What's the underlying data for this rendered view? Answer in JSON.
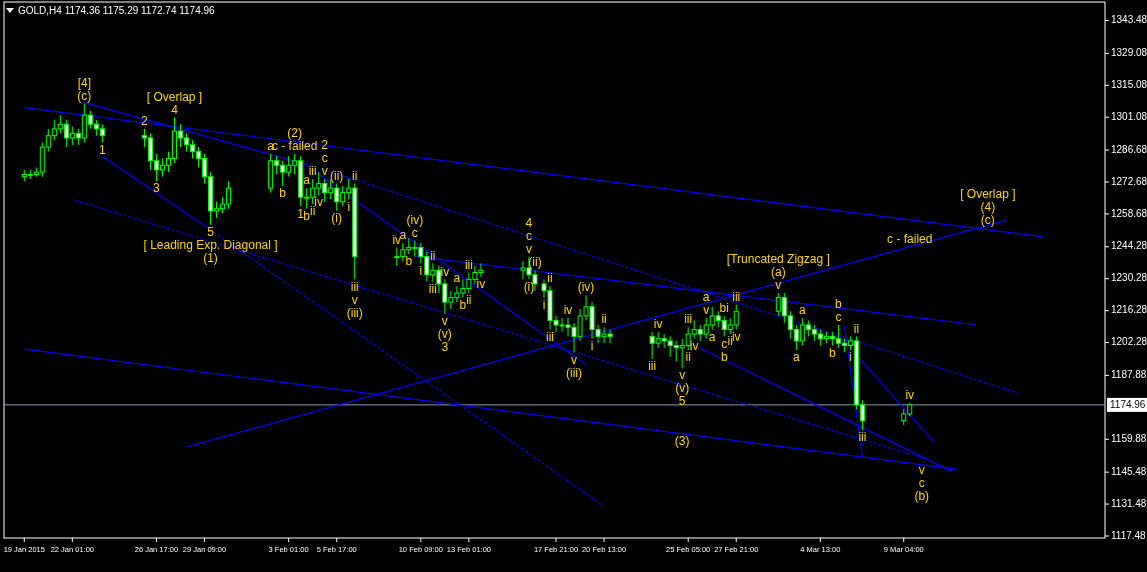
{
  "chart_data": {
    "type": "candlestick",
    "title": "GOLD,H4  1174.36 1175.29 1172.74 1174.96",
    "xlim": [
      "2015-01-18T06:00",
      "2015-03-20T08:00"
    ],
    "xticks": [
      {
        "value": "2015-01-19T09:00",
        "label": "19 Jan 2015"
      },
      {
        "value": "2015-01-22T01:00",
        "label": "22 Jan 01:00"
      },
      {
        "value": "2015-01-26T17:00",
        "label": "26 Jan 17:00"
      },
      {
        "value": "2015-01-29T09:00",
        "label": "29 Jan 09:00"
      },
      {
        "value": "2015-02-03T01:00",
        "label": "3 Feb 01:00"
      },
      {
        "value": "2015-02-05T17:00",
        "label": "5 Feb 17:00"
      },
      {
        "value": "2015-02-10T09:00",
        "label": "10 Feb 09:00"
      },
      {
        "value": "2015-02-13T01:00",
        "label": "13 Feb 01:00"
      },
      {
        "value": "2015-02-17T21:00",
        "label": "17 Feb 21:00"
      },
      {
        "value": "2015-02-20T13:00",
        "label": "20 Feb 13:00"
      },
      {
        "value": "2015-02-25T05:00",
        "label": "25 Feb 05:00"
      },
      {
        "value": "2015-02-27T21:00",
        "label": "27 Feb 21:00"
      },
      {
        "value": "2015-03-04T13:00",
        "label": "4 Mar 13:00"
      },
      {
        "value": "2015-03-09T04:00",
        "label": "9 Mar 04:00"
      }
    ],
    "ylim": [
      1116.6,
      1351.6
    ],
    "yticks": [
      1117.48,
      1131.48,
      1145.48,
      1159.88,
      1187.88,
      1202.28,
      1216.28,
      1230.28,
      1244.28,
      1258.68,
      1272.68,
      1286.68,
      1301.08,
      1315.08,
      1329.08,
      1343.48
    ],
    "ref_lines": [
      {
        "axis": "y",
        "value": 1174.96,
        "label": "1174.96",
        "color": "#8a9bb0"
      }
    ],
    "color": "#00ff00",
    "x": [
      "2015-01-19T09:00",
      "2015-01-19T17:00",
      "2015-01-20T01:00",
      "2015-01-20T09:00",
      "2015-01-20T17:00",
      "2015-01-21T01:00",
      "2015-01-21T09:00",
      "2015-01-21T17:00",
      "2015-01-22T01:00",
      "2015-01-22T09:00",
      "2015-01-22T17:00",
      "2015-01-23T01:00",
      "2015-01-23T09:00",
      "2015-01-23T17:00",
      "2015-01-26T01:00",
      "2015-01-26T09:00",
      "2015-01-26T17:00",
      "2015-01-27T01:00",
      "2015-01-27T09:00",
      "2015-01-27T17:00",
      "2015-01-28T01:00",
      "2015-01-28T09:00",
      "2015-01-28T17:00",
      "2015-01-29T01:00",
      "2015-01-29T09:00",
      "2015-01-29T17:00",
      "2015-01-30T01:00",
      "2015-01-30T09:00",
      "2015-01-30T17:00",
      "2015-02-02T01:00",
      "2015-02-02T09:00",
      "2015-02-02T17:00",
      "2015-02-03T01:00",
      "2015-02-03T09:00",
      "2015-02-03T17:00",
      "2015-02-04T01:00",
      "2015-02-04T09:00",
      "2015-02-04T17:00",
      "2015-02-05T01:00",
      "2015-02-05T09:00",
      "2015-02-05T17:00",
      "2015-02-06T01:00",
      "2015-02-06T09:00",
      "2015-02-06T17:00",
      "2015-02-09T01:00",
      "2015-02-09T09:00",
      "2015-02-09T17:00",
      "2015-02-10T01:00",
      "2015-02-10T09:00",
      "2015-02-10T17:00",
      "2015-02-11T01:00",
      "2015-02-11T09:00",
      "2015-02-11T17:00",
      "2015-02-12T01:00",
      "2015-02-12T09:00",
      "2015-02-12T17:00",
      "2015-02-13T01:00",
      "2015-02-13T09:00",
      "2015-02-13T17:00",
      "2015-02-16T01:00",
      "2015-02-16T09:00",
      "2015-02-16T17:00",
      "2015-02-17T05:00",
      "2015-02-17T13:00",
      "2015-02-17T21:00",
      "2015-02-18T05:00",
      "2015-02-18T13:00",
      "2015-02-18T21:00",
      "2015-02-19T05:00",
      "2015-02-19T13:00",
      "2015-02-19T21:00",
      "2015-02-20T05:00",
      "2015-02-20T13:00",
      "2015-02-20T21:00",
      "2015-02-23T05:00",
      "2015-02-23T13:00",
      "2015-02-23T21:00",
      "2015-02-24T05:00",
      "2015-02-24T13:00",
      "2015-02-24T21:00",
      "2015-02-25T05:00",
      "2015-02-25T13:00",
      "2015-02-25T21:00",
      "2015-02-26T05:00",
      "2015-02-26T13:00",
      "2015-02-26T21:00",
      "2015-02-27T05:00",
      "2015-02-27T13:00",
      "2015-02-27T21:00",
      "2015-03-02T05:00",
      "2015-03-02T13:00",
      "2015-03-02T21:00",
      "2015-03-03T05:00",
      "2015-03-03T13:00",
      "2015-03-03T21:00",
      "2015-03-04T05:00",
      "2015-03-04T13:00",
      "2015-03-04T21:00",
      "2015-03-05T05:00",
      "2015-03-05T13:00",
      "2015-03-05T21:00",
      "2015-03-06T05:00",
      "2015-03-06T13:00",
      "2015-03-06T21:00",
      "2015-03-09T04:00",
      "2015-03-09T12:00"
    ],
    "ohlc": [
      [
        1275,
        1278,
        1273,
        1276
      ],
      [
        1276,
        1278,
        1274,
        1276
      ],
      [
        1276,
        1279,
        1275,
        1277
      ],
      [
        1277,
        1290,
        1275,
        1288
      ],
      [
        1288,
        1296,
        1286,
        1293
      ],
      [
        1293,
        1300,
        1291,
        1296
      ],
      [
        1296,
        1302,
        1294,
        1298
      ],
      [
        1298,
        1300,
        1288,
        1292
      ],
      [
        1292,
        1297,
        1289,
        1294
      ],
      [
        1294,
        1296,
        1289,
        1292
      ],
      [
        1292,
        1307,
        1290,
        1302
      ],
      [
        1302,
        1304,
        1296,
        1298
      ],
      [
        1298,
        1300,
        1293,
        1296
      ],
      [
        1296,
        1298,
        1290,
        1293
      ],
      [
        1293,
        1296,
        1288,
        1292
      ],
      [
        1292,
        1294,
        1278,
        1282
      ],
      [
        1282,
        1285,
        1273,
        1278
      ],
      [
        1278,
        1283,
        1275,
        1280
      ],
      [
        1280,
        1286,
        1277,
        1283
      ],
      [
        1283,
        1301,
        1281,
        1295
      ],
      [
        1295,
        1298,
        1288,
        1292
      ],
      [
        1292,
        1294,
        1286,
        1289
      ],
      [
        1289,
        1291,
        1283,
        1286
      ],
      [
        1286,
        1288,
        1279,
        1283
      ],
      [
        1283,
        1285,
        1272,
        1275
      ],
      [
        1275,
        1277,
        1254,
        1260
      ],
      [
        1260,
        1264,
        1257,
        1261
      ],
      [
        1261,
        1266,
        1259,
        1263
      ],
      [
        1263,
        1273,
        1261,
        1270
      ],
      [
        1270,
        1285,
        1268,
        1282
      ],
      [
        1282,
        1284,
        1276,
        1280
      ],
      [
        1280,
        1282,
        1271,
        1277
      ],
      [
        1277,
        1284,
        1275,
        1280
      ],
      [
        1280,
        1285,
        1276,
        1282
      ],
      [
        1282,
        1284,
        1262,
        1266
      ],
      [
        1266,
        1270,
        1261,
        1266
      ],
      [
        1266,
        1274,
        1263,
        1270
      ],
      [
        1270,
        1277,
        1267,
        1272
      ],
      [
        1272,
        1274,
        1264,
        1268
      ],
      [
        1268,
        1274,
        1265,
        1270
      ],
      [
        1270,
        1272,
        1260,
        1264
      ],
      [
        1264,
        1271,
        1262,
        1268
      ],
      [
        1268,
        1274,
        1265,
        1270
      ],
      [
        1270,
        1272,
        1230,
        1240
      ],
      [
        1240,
        1244,
        1236,
        1240
      ],
      [
        1240,
        1246,
        1238,
        1243
      ],
      [
        1243,
        1248,
        1241,
        1244
      ],
      [
        1244,
        1247,
        1240,
        1244
      ],
      [
        1244,
        1246,
        1237,
        1240
      ],
      [
        1240,
        1242,
        1229,
        1232
      ],
      [
        1232,
        1237,
        1229,
        1234
      ],
      [
        1234,
        1236,
        1224,
        1228
      ],
      [
        1228,
        1230,
        1215,
        1220
      ],
      [
        1220,
        1225,
        1217,
        1222
      ],
      [
        1222,
        1227,
        1220,
        1224
      ],
      [
        1224,
        1230,
        1222,
        1226
      ],
      [
        1226,
        1233,
        1224,
        1230
      ],
      [
        1230,
        1236,
        1228,
        1233
      ],
      [
        1233,
        1237,
        1231,
        1234
      ],
      [
        1234,
        1238,
        1230,
        1235
      ],
      [
        1235,
        1240,
        1230,
        1232
      ],
      [
        1232,
        1234,
        1225,
        1228
      ],
      [
        1228,
        1230,
        1222,
        1225
      ],
      [
        1225,
        1227,
        1208,
        1212
      ],
      [
        1212,
        1214,
        1207,
        1210
      ],
      [
        1210,
        1213,
        1207,
        1210
      ],
      [
        1210,
        1213,
        1205,
        1209
      ],
      [
        1209,
        1211,
        1198,
        1205
      ],
      [
        1205,
        1217,
        1203,
        1214
      ],
      [
        1214,
        1223,
        1212,
        1218
      ],
      [
        1218,
        1220,
        1204,
        1208
      ],
      [
        1208,
        1210,
        1202,
        1205
      ],
      [
        1205,
        1209,
        1202,
        1206
      ],
      [
        1206,
        1208,
        1202,
        1205
      ],
      [
        1205,
        1207,
        1195,
        1202
      ],
      [
        1202,
        1207,
        1200,
        1204
      ],
      [
        1204,
        1206,
        1200,
        1203
      ],
      [
        1203,
        1205,
        1196,
        1201
      ],
      [
        1201,
        1203,
        1194,
        1200
      ],
      [
        1200,
        1204,
        1191,
        1201
      ],
      [
        1201,
        1209,
        1199,
        1206
      ],
      [
        1206,
        1212,
        1204,
        1208
      ],
      [
        1208,
        1210,
        1203,
        1206
      ],
      [
        1206,
        1213,
        1204,
        1210
      ],
      [
        1210,
        1218,
        1208,
        1214
      ],
      [
        1214,
        1216,
        1209,
        1212
      ],
      [
        1212,
        1214,
        1205,
        1208
      ],
      [
        1208,
        1213,
        1206,
        1210
      ],
      [
        1210,
        1219,
        1208,
        1216
      ],
      [
        1216,
        1224,
        1214,
        1222
      ],
      [
        1222,
        1224,
        1211,
        1214
      ],
      [
        1214,
        1216,
        1204,
        1208
      ],
      [
        1208,
        1210,
        1199,
        1203
      ],
      [
        1203,
        1213,
        1201,
        1210
      ],
      [
        1210,
        1212,
        1205,
        1208
      ],
      [
        1208,
        1210,
        1203,
        1206
      ],
      [
        1206,
        1208,
        1201,
        1204
      ],
      [
        1204,
        1207,
        1202,
        1205
      ],
      [
        1205,
        1207,
        1201,
        1204
      ],
      [
        1204,
        1210,
        1200,
        1202
      ],
      [
        1202,
        1204,
        1198,
        1201
      ],
      [
        1201,
        1205,
        1199,
        1203
      ],
      [
        1203,
        1205,
        1173,
        1175
      ],
      [
        1175,
        1177,
        1164,
        1168
      ],
      [
        1168,
        1173,
        1166,
        1171
      ],
      [
        1171,
        1176,
        1170,
        1175
      ]
    ],
    "series": [
      {
        "type": "line",
        "color": "#0000ff",
        "line_style": "solid",
        "x": [
          "2015-01-19T09:00",
          "2015-03-16T20:00"
        ],
        "values": [
          1305.3,
          1248.7
        ]
      },
      {
        "type": "line",
        "color": "#0000ff",
        "line_style": "solid",
        "x": [
          "2015-01-22T17:00",
          "2015-02-04T01:00"
        ],
        "values": [
          1307.5,
          1280.4
        ]
      },
      {
        "type": "line",
        "color": "#0000ff",
        "line_style": "dashed",
        "x": [
          "2015-02-04T01:00",
          "2015-03-15T12:00"
        ],
        "values": [
          1280.4,
          1180.1
        ]
      },
      {
        "type": "line",
        "color": "#0000ff",
        "line_style": "solid",
        "x": [
          "2015-01-23T17:00",
          "2015-01-29T17:00"
        ],
        "values": [
          1283.9,
          1251.7
        ]
      },
      {
        "type": "line",
        "color": "#0000ff",
        "line_style": "dashed",
        "x": [
          "2015-01-29T17:00",
          "2015-02-20T13:00"
        ],
        "values": [
          1251.7,
          1130.4
        ]
      },
      {
        "type": "line",
        "color": "#0000ff",
        "line_style": "dashed",
        "x": [
          "2015-01-22T01:00",
          "2015-03-10T12:00"
        ],
        "values": [
          1265.0,
          1151.0
        ]
      },
      {
        "type": "line",
        "color": "#0000ff",
        "line_style": "solid",
        "x": [
          "2015-01-19T09:00",
          "2015-03-12T04:00"
        ],
        "values": [
          1199.4,
          1146.7
        ]
      },
      {
        "type": "line",
        "color": "#0000ff",
        "line_style": "solid",
        "x": [
          "2015-01-28T09:00",
          "2015-03-14T20:00"
        ],
        "values": [
          1156.5,
          1256.0
        ]
      },
      {
        "type": "line",
        "color": "#0000ff",
        "line_style": "solid",
        "x": [
          "2015-02-10T01:00",
          "2015-03-13T04:00"
        ],
        "values": [
          1240.1,
          1210.1
        ]
      },
      {
        "type": "line",
        "color": "#0000ff",
        "line_style": "solid",
        "x": [
          "2015-02-03T17:00",
          "2015-02-19T13:00"
        ],
        "values": [
          1281.7,
          1192.5
        ]
      },
      {
        "type": "line",
        "color": "#0000ff",
        "line_style": "solid",
        "x": [
          "2015-02-25T13:00",
          "2015-03-11T20:00"
        ],
        "values": [
          1201.1,
          1145.8
        ]
      },
      {
        "type": "line",
        "color": "#0000ff",
        "line_style": "solid",
        "x": [
          "2015-03-05T21:00",
          "2015-03-06T21:00"
        ],
        "values": [
          1209.7,
          1152.2
        ]
      },
      {
        "type": "line",
        "color": "#0000ff",
        "line_style": "solid",
        "x": [
          "2015-03-06T13:00",
          "2015-03-10T20:00"
        ],
        "values": [
          1196.8,
          1158.6
        ]
      }
    ],
    "annotations": [
      {
        "text": "[4]",
        "x": "2015-01-22T17:00",
        "y": 1307
      },
      {
        "text": "(c)",
        "x": "2015-01-22T17:00",
        "y": 1307
      },
      {
        "text": "[ Overlap ]",
        "x": "2015-01-27T17:00",
        "y": 1301
      },
      {
        "text": "4",
        "x": "2015-01-27T17:00",
        "y": 1301
      },
      {
        "text": "2",
        "x": "2015-01-26T01:00",
        "y": 1296
      },
      {
        "text": "1",
        "x": "2015-01-23T17:00",
        "y": 1290
      },
      {
        "text": "3",
        "x": "2015-01-26T17:00",
        "y": 1273
      },
      {
        "text": "5",
        "x": "2015-01-29T17:00",
        "y": 1254
      },
      {
        "text": "[ Leading Exp. Diagonal ]",
        "x": "2015-01-29T17:00",
        "y": 1254
      },
      {
        "text": "(1)",
        "x": "2015-01-29T17:00",
        "y": 1254
      },
      {
        "text": "a",
        "x": "2015-02-02T01:00",
        "y": 1285
      },
      {
        "text": "b",
        "x": "2015-02-02T17:00",
        "y": 1271
      },
      {
        "text": "(2)",
        "x": "2015-02-03T09:00",
        "y": 1285
      },
      {
        "text": "c - failed",
        "x": "2015-02-03T09:00",
        "y": 1285
      },
      {
        "text": "1",
        "x": "2015-02-03T17:00",
        "y": 1262
      },
      {
        "text": "2",
        "x": "2015-02-05T01:00",
        "y": 1274
      },
      {
        "text": "c",
        "x": "2015-02-05T01:00",
        "y": 1274
      },
      {
        "text": "v",
        "x": "2015-02-05T01:00",
        "y": 1274
      },
      {
        "text": "iii",
        "x": "2015-02-04T09:00",
        "y": 1274
      },
      {
        "text": "a",
        "x": "2015-02-04T01:00",
        "y": 1270
      },
      {
        "text": "b",
        "x": "2015-02-04T01:00",
        "y": 1261
      },
      {
        "text": "ii",
        "x": "2015-02-04T09:00",
        "y": 1263
      },
      {
        "text": "iv",
        "x": "2015-02-04T17:00",
        "y": 1267
      },
      {
        "text": "(ii)",
        "x": "2015-02-05T17:00",
        "y": 1272
      },
      {
        "text": "i",
        "x": "2015-02-06T09:00",
        "y": 1265
      },
      {
        "text": "ii",
        "x": "2015-02-06T17:00",
        "y": 1272
      },
      {
        "text": "iii",
        "x": "2015-02-06T17:00",
        "y": 1230
      },
      {
        "text": "v",
        "x": "2015-02-06T17:00",
        "y": 1230
      },
      {
        "text": "(iii)",
        "x": "2015-02-06T17:00",
        "y": 1230
      },
      {
        "text": "(i)",
        "x": "2015-02-05T17:00",
        "y": 1260
      },
      {
        "text": "iv",
        "x": "2015-02-09T01:00",
        "y": 1244
      },
      {
        "text": "a",
        "x": "2015-02-09T09:00",
        "y": 1246
      },
      {
        "text": "b",
        "x": "2015-02-09T17:00",
        "y": 1241
      },
      {
        "text": "(iv)",
        "x": "2015-02-10T01:00",
        "y": 1247
      },
      {
        "text": "c",
        "x": "2015-02-10T01:00",
        "y": 1247
      },
      {
        "text": "ii",
        "x": "2015-02-11T01:00",
        "y": 1237
      },
      {
        "text": "iii",
        "x": "2015-02-11T01:00",
        "y": 1229
      },
      {
        "text": "a",
        "x": "2015-02-12T09:00",
        "y": 1227
      },
      {
        "text": "i",
        "x": "2015-02-10T09:00",
        "y": 1237
      },
      {
        "text": "iv",
        "x": "2015-02-11T17:00",
        "y": 1230
      },
      {
        "text": "v",
        "x": "2015-02-11T17:00",
        "y": 1215
      },
      {
        "text": "(v)",
        "x": "2015-02-11T17:00",
        "y": 1215
      },
      {
        "text": "3",
        "x": "2015-02-11T17:00",
        "y": 1215
      },
      {
        "text": "b",
        "x": "2015-02-12T17:00",
        "y": 1222
      },
      {
        "text": "iii",
        "x": "2015-02-13T01:00",
        "y": 1233
      },
      {
        "text": "ii",
        "x": "2015-02-13T01:00",
        "y": 1224
      },
      {
        "text": "iv",
        "x": "2015-02-13T17:00",
        "y": 1231
      },
      {
        "text": "4",
        "x": "2015-02-16T09:00",
        "y": 1240
      },
      {
        "text": "c",
        "x": "2015-02-16T09:00",
        "y": 1240
      },
      {
        "text": "v",
        "x": "2015-02-16T09:00",
        "y": 1240
      },
      {
        "text": "(i)",
        "x": "2015-02-16T09:00",
        "y": 1230
      },
      {
        "text": "(ii)",
        "x": "2015-02-16T17:00",
        "y": 1234
      },
      {
        "text": "i",
        "x": "2015-02-17T05:00",
        "y": 1222
      },
      {
        "text": "ii",
        "x": "2015-02-17T13:00",
        "y": 1227
      },
      {
        "text": "iii",
        "x": "2015-02-17T13:00",
        "y": 1208
      },
      {
        "text": "(iv)",
        "x": "2015-02-19T13:00",
        "y": 1223
      },
      {
        "text": "iv",
        "x": "2015-02-18T13:00",
        "y": 1213
      },
      {
        "text": "ii",
        "x": "2015-02-20T13:00",
        "y": 1209
      },
      {
        "text": "v",
        "x": "2015-02-18T21:00",
        "y": 1198
      },
      {
        "text": "(iii)",
        "x": "2015-02-18T21:00",
        "y": 1198
      },
      {
        "text": "i",
        "x": "2015-02-19T21:00",
        "y": 1204
      },
      {
        "text": "iv",
        "x": "2015-02-23T13:00",
        "y": 1207
      },
      {
        "text": "iii",
        "x": "2015-02-23T05:00",
        "y": 1195
      },
      {
        "text": "iii",
        "x": "2015-02-25T05:00",
        "y": 1209
      },
      {
        "text": "ii",
        "x": "2015-02-25T05:00",
        "y": 1199
      },
      {
        "text": "iv",
        "x": "2015-02-25T13:00",
        "y": 1204
      },
      {
        "text": "v",
        "x": "2015-02-24T21:00",
        "y": 1191
      },
      {
        "text": "(v)",
        "x": "2015-02-24T21:00",
        "y": 1191
      },
      {
        "text": "5",
        "x": "2015-02-24T21:00",
        "y": 1191
      },
      {
        "text": "(3)",
        "x": "2015-02-24T21:00",
        "y": 1162.3
      },
      {
        "text": "a",
        "x": "2015-02-26T05:00",
        "y": 1213
      },
      {
        "text": "v",
        "x": "2015-02-26T05:00",
        "y": 1213
      },
      {
        "text": "bi",
        "x": "2015-02-27T05:00",
        "y": 1214
      },
      {
        "text": "c",
        "x": "2015-02-27T05:00",
        "y": 1205
      },
      {
        "text": "b",
        "x": "2015-02-27T05:00",
        "y": 1205
      },
      {
        "text": "a",
        "x": "2015-02-26T13:00",
        "y": 1208
      },
      {
        "text": "[Truncated Zigzag ]",
        "x": "2015-03-02T05:00",
        "y": 1224
      },
      {
        "text": "(a)",
        "x": "2015-03-02T05:00",
        "y": 1224
      },
      {
        "text": "c - failed",
        "x": "2015-03-09T12:00",
        "y": 1244.3
      },
      {
        "text": "v",
        "x": "2015-03-02T05:00",
        "y": 1224
      },
      {
        "text": "iii",
        "x": "2015-02-27T21:00",
        "y": 1219
      },
      {
        "text": "iv",
        "x": "2015-02-27T21:00",
        "y": 1208
      },
      {
        "text": "ii",
        "x": "2015-02-27T13:00",
        "y": 1206
      },
      {
        "text": "a",
        "x": "2015-03-03T13:00",
        "y": 1213
      },
      {
        "text": "a",
        "x": "2015-03-03T05:00",
        "y": 1199
      },
      {
        "text": "b",
        "x": "2015-03-05T13:00",
        "y": 1210
      },
      {
        "text": "c",
        "x": "2015-03-05T13:00",
        "y": 1210
      },
      {
        "text": "b",
        "x": "2015-03-05T05:00",
        "y": 1201
      },
      {
        "text": "ii",
        "x": "2015-03-06T13:00",
        "y": 1205
      },
      {
        "text": "i",
        "x": "2015-03-06T05:00",
        "y": 1199
      },
      {
        "text": "iii",
        "x": "2015-03-06T21:00",
        "y": 1164
      },
      {
        "text": "iv",
        "x": "2015-03-09T12:00",
        "y": 1176
      },
      {
        "text": "v",
        "x": "2015-03-10T04:00",
        "y": 1149.5
      },
      {
        "text": "c",
        "x": "2015-03-10T04:00",
        "y": 1149.5
      },
      {
        "text": "(b)",
        "x": "2015-03-10T04:00",
        "y": 1149.5
      },
      {
        "text": "[ Overlap ]",
        "x": "2015-03-13T20:00",
        "y": 1252.8
      },
      {
        "text": "(4)",
        "x": "2015-03-13T20:00",
        "y": 1252.8
      },
      {
        "text": "(c)",
        "x": "2015-03-13T20:00",
        "y": 1252.8
      }
    ]
  }
}
